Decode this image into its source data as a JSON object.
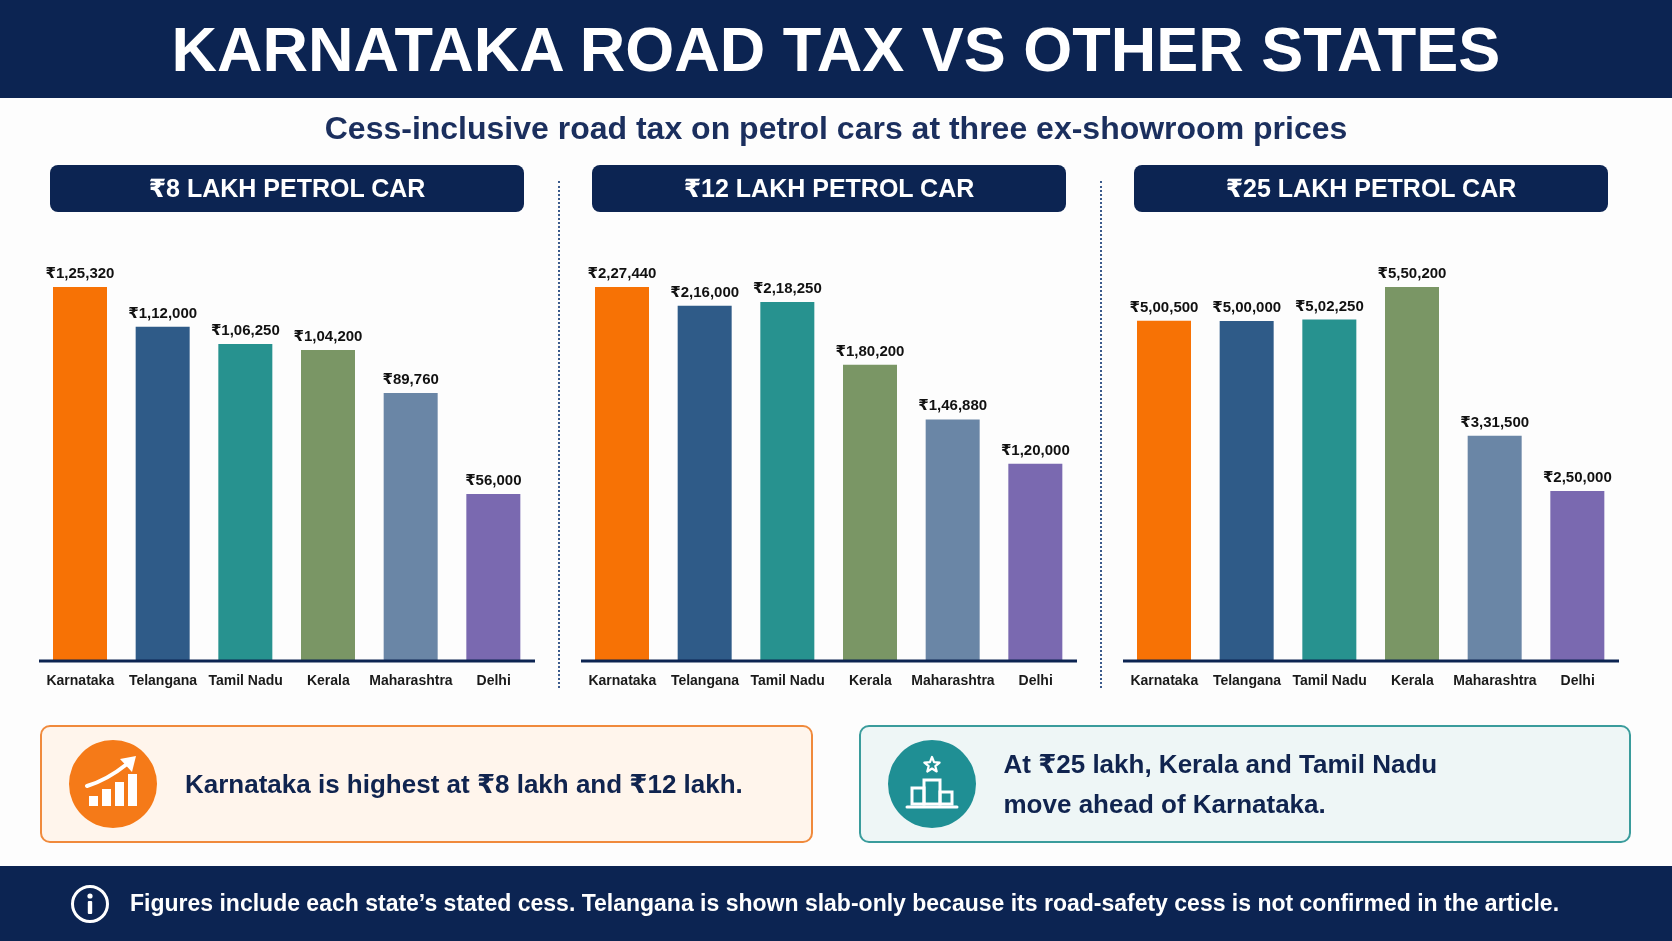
{
  "chart_data": [
    {
      "type": "other",
      "title": "KARNATAKA ROAD TAX VS OTHER STATES",
      "subtitle": "Cess-inclusive road tax on petrol cars at three ex-showroom prices"
    },
    {
      "type": "bar",
      "title": "₹8 LAKH PETROL CAR",
      "categories": [
        "Karnataka",
        "Telangana",
        "Tamil Nadu",
        "Kerala",
        "Maharashtra",
        "Delhi"
      ],
      "values": [
        125320,
        112000,
        106250,
        104200,
        89760,
        56000
      ],
      "colors": [
        "#f77205",
        "#2f5b88",
        "#27928f",
        "#7a9665",
        "#6a86a6",
        "#7a69b0"
      ],
      "value_labels": [
        "₹1,25,320",
        "₹1,12,000",
        "₹1,06,250",
        "₹1,04,200",
        "₹89,760",
        "₹56,000"
      ]
    },
    {
      "type": "bar",
      "title": "₹12 LAKH PETROL CAR",
      "categories": [
        "Karnataka",
        "Telangana",
        "Tamil Nadu",
        "Kerala",
        "Maharashtra",
        "Delhi"
      ],
      "values": [
        227440,
        216000,
        218250,
        180200,
        146880,
        120000
      ],
      "colors": [
        "#f77205",
        "#2f5b88",
        "#27928f",
        "#7a9665",
        "#6a86a6",
        "#7a69b0"
      ],
      "value_labels": [
        "₹2,27,440",
        "₹2,16,000",
        "₹2,18,250",
        "₹1,80,200",
        "₹1,46,880",
        "₹1,20,000"
      ]
    },
    {
      "type": "bar",
      "title": "₹25 LAKH PETROL CAR",
      "categories": [
        "Karnataka",
        "Telangana",
        "Tamil Nadu",
        "Kerala",
        "Maharashtra",
        "Delhi"
      ],
      "values": [
        500500,
        500000,
        502250,
        550200,
        331500,
        250000
      ],
      "colors": [
        "#f77205",
        "#2f5b88",
        "#27928f",
        "#7a9665",
        "#6a86a6",
        "#7a69b0"
      ],
      "value_labels": [
        "₹5,00,500",
        "₹5,00,000",
        "₹5,02,250",
        "₹5,50,200",
        "₹3,31,500",
        "₹2,50,000"
      ]
    },
    {
      "type": "other",
      "annotations": [
        "Karnataka is highest at ₹8 lakh and ₹12 lakh.",
        "At ₹25 lakh, Kerala and Tamil Nadu move ahead of Karnataka.",
        "Figures include each state’s stated cess. Telangana is shown slab-only because its road-safety cess is not confirmed in the article."
      ]
    }
  ]
}
